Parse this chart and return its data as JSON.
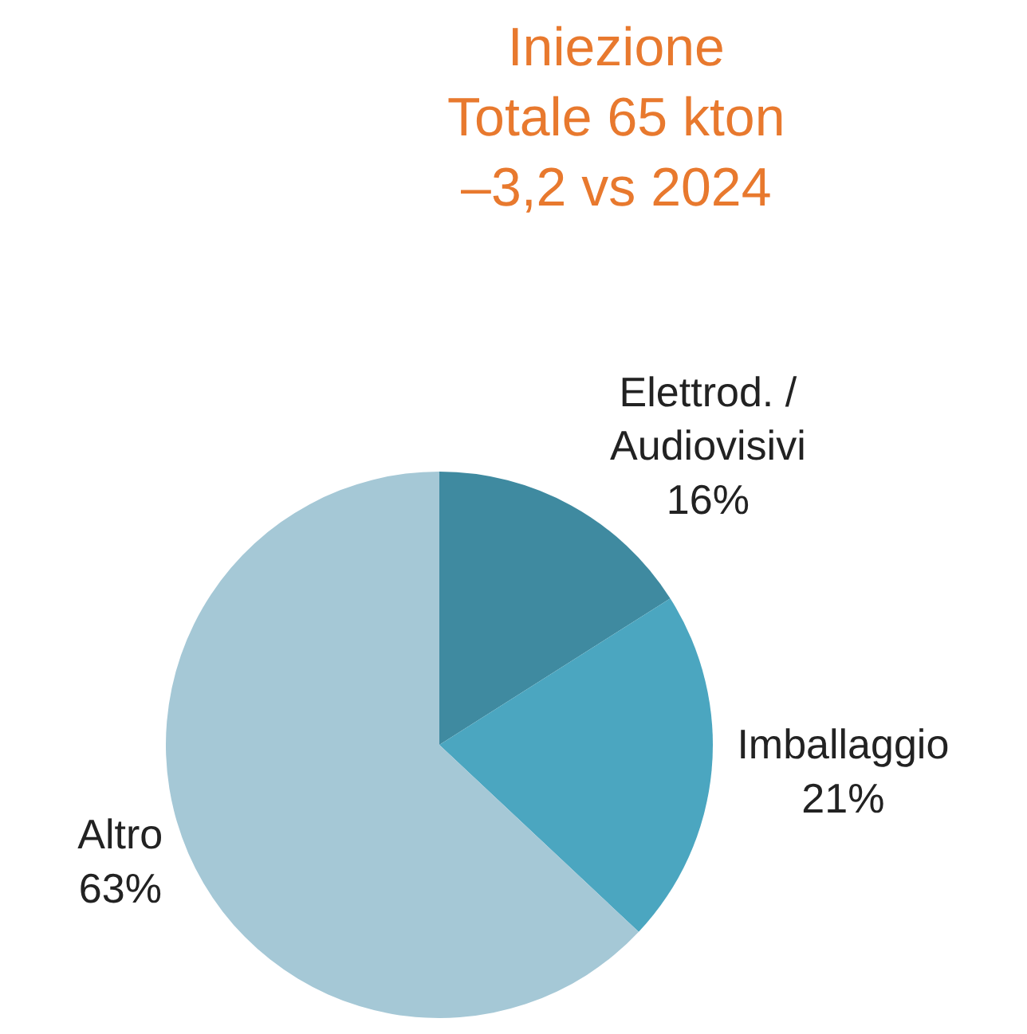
{
  "chart_data": {
    "type": "pie",
    "title": "Iniezione\nTotale 65 kton\n–3,2 vs 2024",
    "categories": [
      "Elettrod. /\nAudiovisivi",
      "Imballaggio",
      "Altro"
    ],
    "values": [
      16,
      21,
      63
    ],
    "value_labels": [
      "16%",
      "21%",
      "63%"
    ],
    "colors": [
      "#3f8aa0",
      "#4ba6c0",
      "#a5c8d6"
    ],
    "legend": false
  }
}
